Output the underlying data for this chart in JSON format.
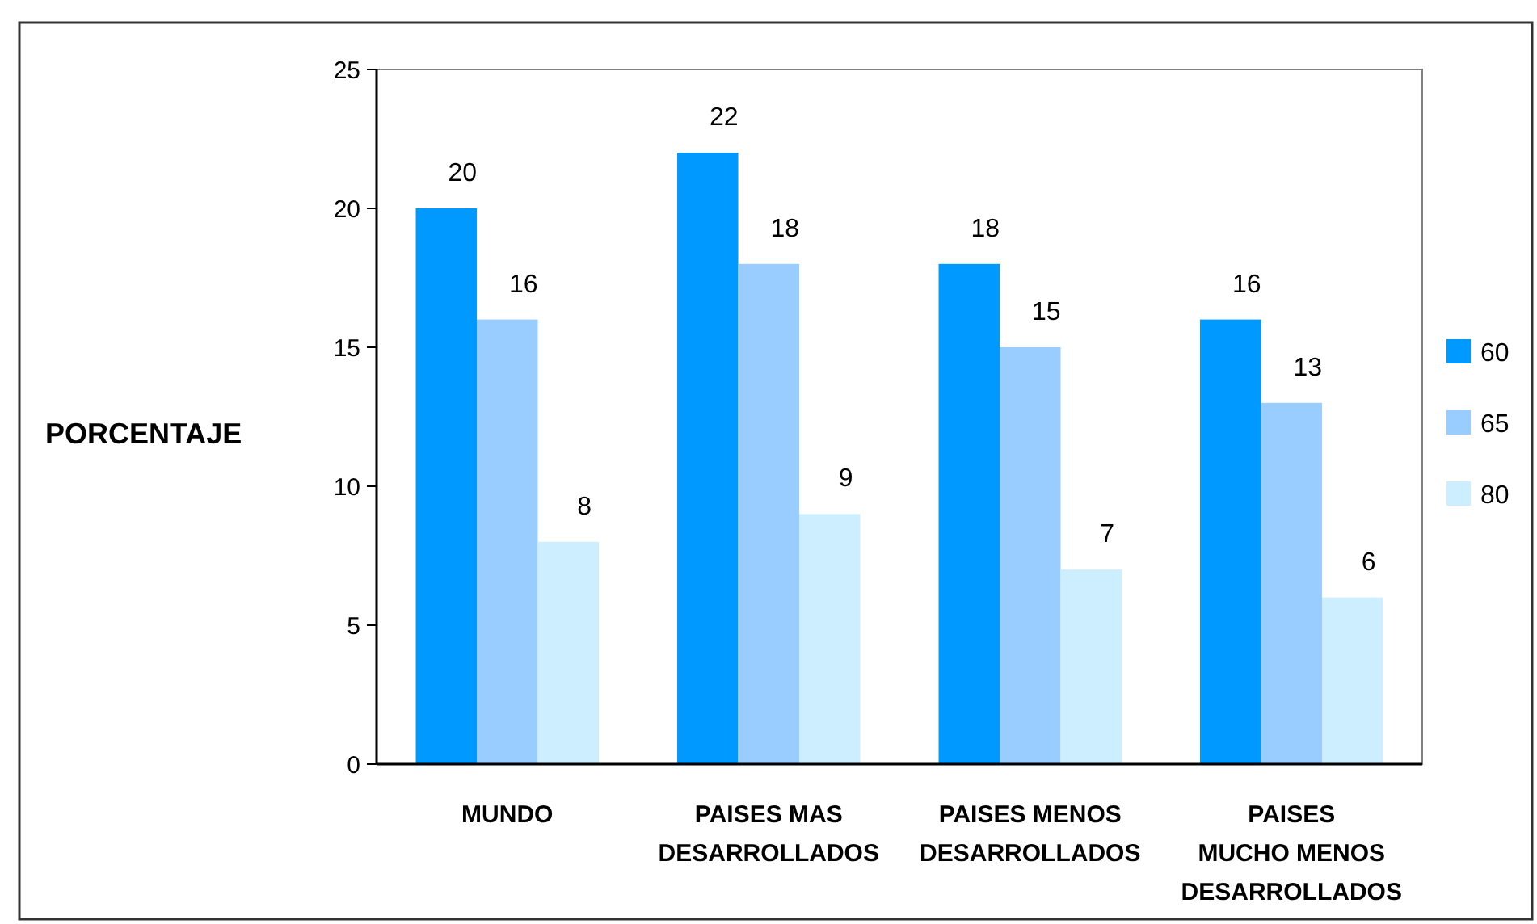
{
  "chart_data": {
    "type": "bar",
    "ylabel": "PORCENTAJE",
    "categories": [
      "MUNDO",
      "PAISES MAS\nDESARROLLADOS",
      "PAISES MENOS\nDESARROLLADOS",
      "PAISES\nMUCHO MENOS\nDESARROLLADOS"
    ],
    "series": [
      {
        "name": "60",
        "color": "#0099ff",
        "values": [
          20,
          22,
          18,
          16
        ]
      },
      {
        "name": "65",
        "color": "#99ccff",
        "values": [
          16,
          18,
          15,
          13
        ]
      },
      {
        "name": "80",
        "color": "#cceeff",
        "values": [
          8,
          9,
          7,
          6
        ]
      }
    ],
    "ylim": [
      0,
      25
    ],
    "yticks": [
      0,
      5,
      10,
      15,
      20,
      25
    ],
    "data_labels": true,
    "legend": "right",
    "grid": false
  }
}
